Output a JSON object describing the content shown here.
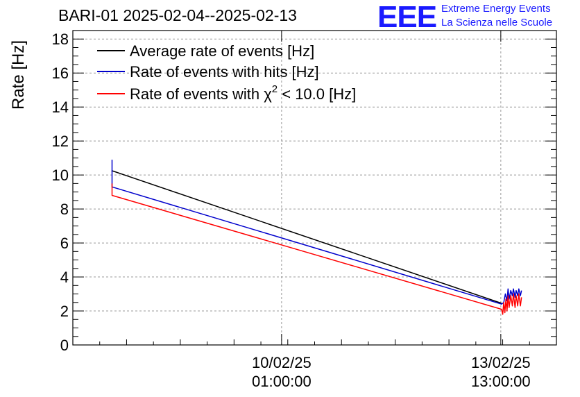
{
  "chart_data": {
    "type": "line",
    "title": "BARI-01 2025-02-04--2025-02-13",
    "ylabel": "Rate [Hz]",
    "xlabel": "",
    "ylim": [
      0,
      18.5
    ],
    "yticks": [
      0,
      2,
      4,
      6,
      8,
      10,
      12,
      14,
      16,
      18
    ],
    "xlim_days": [
      0,
      9
    ],
    "xticks": [
      {
        "day": 3.885,
        "date": "10/02/25",
        "time": "01:00:00"
      },
      {
        "day": 7.965,
        "date": "13/02/25",
        "time": "13:00:00"
      }
    ],
    "grid": true,
    "legend_position": "top-left",
    "series": [
      {
        "name": "Average rate of events [Hz]",
        "color": "#000000",
        "x": [
          0.73,
          0.73,
          7.98
        ],
        "y": [
          10.2,
          10.25,
          2.45
        ]
      },
      {
        "name": "Rate of events with hits [Hz]",
        "color": "#0000cc",
        "x": [
          0.73,
          0.73,
          0.73,
          7.98,
          8.02,
          8.05,
          8.08,
          8.1,
          8.12,
          8.15,
          8.18,
          8.2,
          8.23,
          8.25,
          8.28,
          8.3,
          8.33,
          8.35
        ],
        "y": [
          10.9,
          9.5,
          9.3,
          2.4,
          2.5,
          3.0,
          2.6,
          3.3,
          2.7,
          3.2,
          2.9,
          3.3,
          2.8,
          3.2,
          2.9,
          3.3,
          2.9,
          3.2
        ]
      },
      {
        "name_prefix": "Rate of events with ",
        "name_symbol": "χ",
        "name_sup": "2",
        "name_suffix": " < 10.0 [Hz]",
        "color": "#ff0000",
        "x": [
          0.73,
          0.73,
          0.73,
          7.98,
          8.0,
          8.02,
          8.04,
          8.06,
          8.08,
          8.1,
          8.12,
          8.15,
          8.18,
          8.2,
          8.23,
          8.25,
          8.28,
          8.3,
          8.33,
          8.35
        ],
        "y": [
          9.5,
          8.9,
          8.8,
          2.1,
          1.8,
          2.5,
          1.9,
          2.7,
          2.0,
          2.9,
          2.2,
          2.9,
          2.3,
          3.0,
          2.2,
          2.9,
          2.3,
          3.0,
          2.3,
          2.8
        ]
      }
    ]
  },
  "logo": {
    "mark": "EEE",
    "line1": "Extreme Energy Events",
    "line2": "La Scienza nelle Scuole"
  }
}
